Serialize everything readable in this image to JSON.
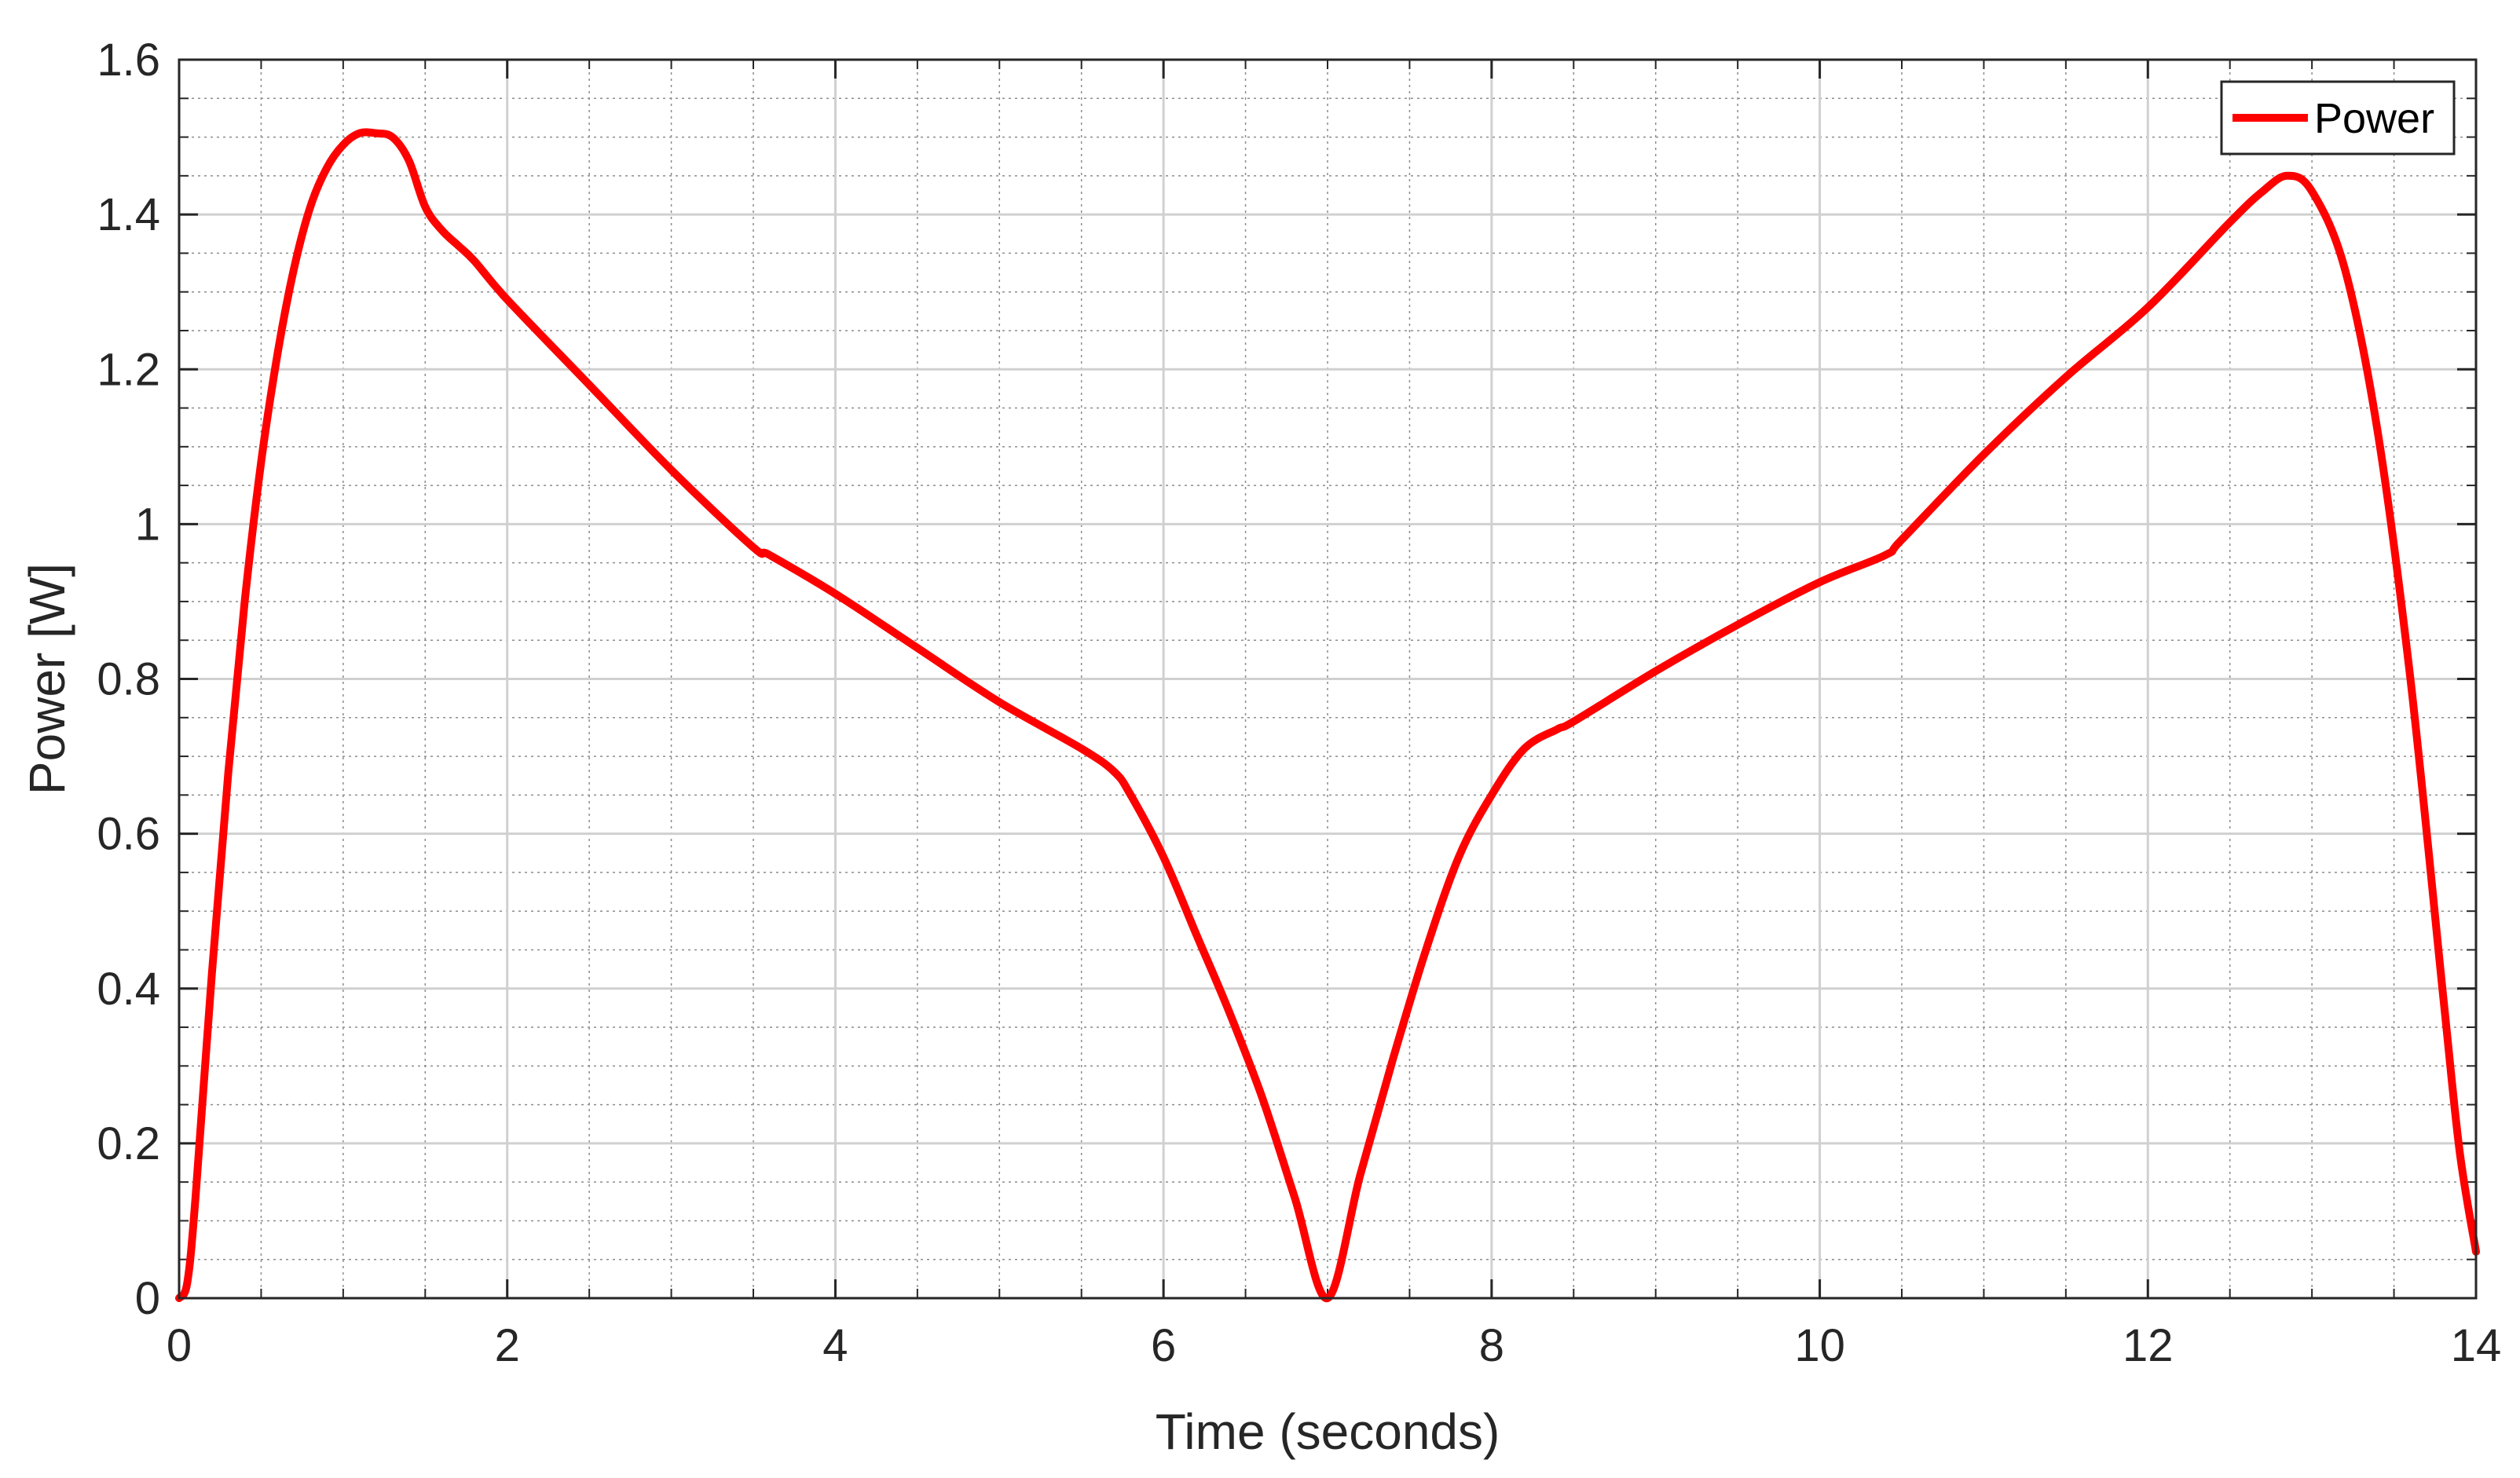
{
  "chart_data": {
    "type": "line",
    "title": "",
    "xlabel": "Time (seconds)",
    "ylabel": "Power [W]",
    "xlim": [
      0,
      14
    ],
    "ylim": [
      0,
      1.6
    ],
    "x_ticks": [
      0,
      2,
      4,
      6,
      8,
      10,
      12,
      14
    ],
    "x_tick_labels": [
      "0",
      "2",
      "4",
      "6",
      "8",
      "10",
      "12",
      "14"
    ],
    "y_ticks": [
      0,
      0.2,
      0.4,
      0.6,
      0.8,
      1,
      1.2,
      1.4,
      1.6
    ],
    "y_tick_labels": [
      "0",
      "0.2",
      "0.4",
      "0.6",
      "0.8",
      "1",
      "1.2",
      "1.4",
      "1.6"
    ],
    "grid": "major and minor",
    "legend_position": "top-right",
    "series": [
      {
        "name": "Power",
        "color": "#ff0000",
        "x": [
          0,
          0.05,
          0.1,
          0.2,
          0.3,
          0.4,
          0.5,
          0.6,
          0.7,
          0.8,
          0.9,
          1.0,
          1.1,
          1.2,
          1.3,
          1.4,
          1.5,
          1.6,
          1.7,
          1.8,
          2.0,
          2.5,
          3.0,
          3.5,
          3.6,
          4.0,
          4.5,
          5.0,
          5.5,
          5.7,
          5.8,
          6.0,
          6.2,
          6.4,
          6.6,
          6.8,
          7.0,
          7.2,
          7.4,
          7.6,
          7.8,
          8.0,
          8.2,
          8.4,
          8.5,
          9.0,
          9.5,
          10.0,
          10.4,
          10.5,
          11.0,
          11.5,
          12.0,
          12.5,
          12.7,
          12.85,
          13.0,
          13.2,
          13.4,
          13.6,
          13.8,
          13.9,
          14.0
        ],
        "y": [
          0.0,
          0.02,
          0.13,
          0.42,
          0.68,
          0.9,
          1.08,
          1.22,
          1.33,
          1.41,
          1.46,
          1.49,
          1.505,
          1.505,
          1.5,
          1.47,
          1.41,
          1.38,
          1.36,
          1.34,
          1.29,
          1.18,
          1.07,
          0.97,
          0.96,
          0.91,
          0.84,
          0.77,
          0.71,
          0.68,
          0.65,
          0.57,
          0.47,
          0.37,
          0.26,
          0.13,
          0.0,
          0.16,
          0.31,
          0.45,
          0.57,
          0.65,
          0.71,
          0.735,
          0.745,
          0.81,
          0.87,
          0.925,
          0.96,
          0.98,
          1.09,
          1.19,
          1.28,
          1.39,
          1.43,
          1.45,
          1.43,
          1.33,
          1.12,
          0.8,
          0.39,
          0.19,
          0.06
        ]
      }
    ]
  }
}
